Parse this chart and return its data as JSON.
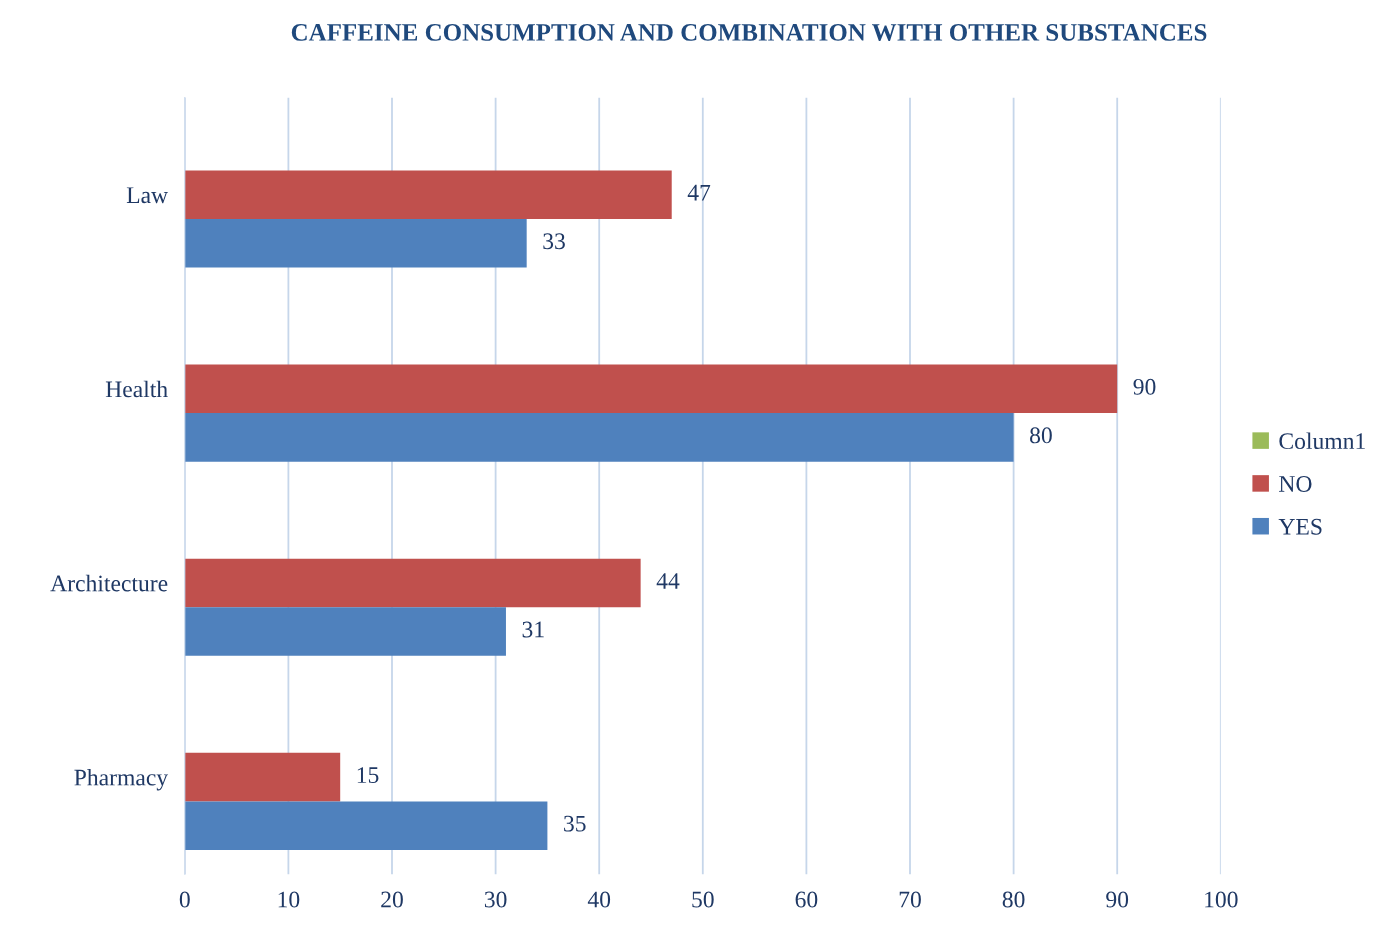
{
  "chart_data": {
    "type": "bar",
    "orientation": "horizontal",
    "title": "CAFFEINE CONSUMPTION AND COMBINATION WITH OTHER SUBSTANCES",
    "categories": [
      "Law",
      "Health",
      "Architecture",
      "Pharmacy"
    ],
    "series": [
      {
        "name": "Column1",
        "color": "#9bbb59",
        "values": [
          null,
          null,
          null,
          null
        ]
      },
      {
        "name": "NO",
        "color": "#c0504d",
        "values": [
          47,
          90,
          44,
          15
        ]
      },
      {
        "name": "YES",
        "color": "#4f81bd",
        "values": [
          33,
          80,
          31,
          35
        ]
      }
    ],
    "xlim": [
      0,
      100
    ],
    "xticks": [
      0,
      10,
      20,
      30,
      40,
      50,
      60,
      70,
      80,
      90,
      100
    ],
    "grid": "x",
    "legend": "right",
    "data_labels": true
  }
}
